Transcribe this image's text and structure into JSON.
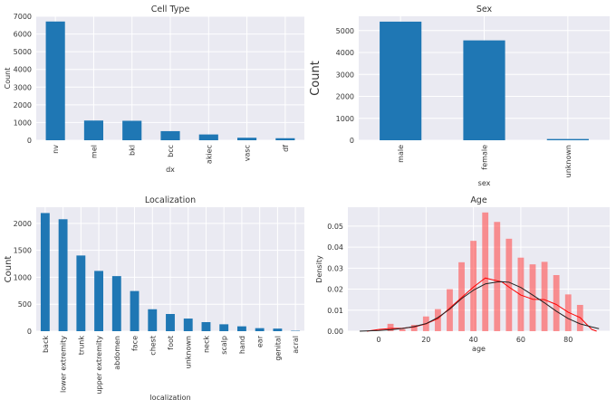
{
  "chart_data": [
    {
      "type": "bar",
      "title": "Cell Type",
      "xlabel": "dx",
      "ylabel": "Count",
      "ylim": [
        0,
        7000
      ],
      "yticks": [
        0,
        1000,
        2000,
        3000,
        4000,
        5000,
        6000,
        7000
      ],
      "categories": [
        "nv",
        "mel",
        "bkl",
        "bcc",
        "akiec",
        "vasc",
        "df"
      ],
      "values": [
        6705,
        1113,
        1099,
        514,
        327,
        142,
        115
      ],
      "color": "#1f77b4",
      "grid": true
    },
    {
      "type": "bar",
      "title": "Sex",
      "xlabel": "sex",
      "ylabel": "Count",
      "ylim": [
        0,
        5650
      ],
      "yticks": [
        0,
        1000,
        2000,
        3000,
        4000,
        5000
      ],
      "categories": [
        "male",
        "female",
        "unknown"
      ],
      "values": [
        5406,
        4552,
        57
      ],
      "color": "#1f77b4",
      "grid": true
    },
    {
      "type": "bar",
      "title": "Localization",
      "xlabel": "localization",
      "ylabel": "Count",
      "ylim": [
        0,
        2300
      ],
      "yticks": [
        0,
        500,
        1000,
        1500,
        2000
      ],
      "categories": [
        "back",
        "lower extremity",
        "trunk",
        "upper extremity",
        "abdomen",
        "face",
        "chest",
        "foot",
        "unknown",
        "neck",
        "scalp",
        "hand",
        "ear",
        "genital",
        "acral"
      ],
      "values": [
        2192,
        2077,
        1404,
        1118,
        1022,
        745,
        407,
        319,
        234,
        168,
        128,
        90,
        56,
        48,
        7
      ],
      "color": "#1f77b4",
      "grid": true
    },
    {
      "type": "histogram",
      "title": "Age",
      "xlabel": "age",
      "ylabel": "Density",
      "xlim": [
        -13,
        97.5
      ],
      "ylim": [
        0,
        0.059
      ],
      "xticks": [
        0,
        20,
        40,
        60,
        80
      ],
      "yticks": [
        "0.00",
        "0.01",
        "0.02",
        "0.03",
        "0.04",
        "0.05"
      ],
      "grid": true,
      "bins": {
        "x": [
          5,
          10,
          15,
          20,
          25,
          30,
          35,
          40,
          45,
          50,
          55,
          60,
          65,
          70,
          75,
          80,
          85
        ],
        "values": [
          0.0035,
          0.001,
          0.003,
          0.007,
          0.0105,
          0.02,
          0.0328,
          0.043,
          0.0565,
          0.052,
          0.044,
          0.035,
          0.0318,
          0.033,
          0.0267,
          0.0175,
          0.0125
        ],
        "color": "#ff4d4d"
      },
      "series": [
        {
          "color": "#ff0000",
          "x": [
            -5,
            0,
            5,
            10,
            15,
            20,
            25,
            30,
            35,
            40,
            45,
            48,
            52,
            55,
            60,
            65,
            70,
            75,
            80,
            85,
            88,
            90,
            92
          ],
          "y": [
            0.0,
            0.0008,
            0.0013,
            0.0014,
            0.002,
            0.0035,
            0.006,
            0.011,
            0.016,
            0.021,
            0.0253,
            0.0245,
            0.0235,
            0.021,
            0.0172,
            0.0152,
            0.015,
            0.0127,
            0.009,
            0.0065,
            0.003,
            0.0008,
            0.0
          ]
        },
        {
          "color": "#222222",
          "x": [
            -8,
            0,
            5,
            10,
            15,
            20,
            25,
            30,
            35,
            40,
            45,
            50,
            52,
            55,
            60,
            65,
            70,
            75,
            80,
            85,
            90,
            93
          ],
          "y": [
            0.0,
            0.0003,
            0.0007,
            0.0013,
            0.0022,
            0.0036,
            0.0065,
            0.0105,
            0.0155,
            0.0195,
            0.0225,
            0.0234,
            0.0235,
            0.0233,
            0.0208,
            0.0172,
            0.0135,
            0.0095,
            0.006,
            0.0035,
            0.002,
            0.0012
          ]
        }
      ]
    }
  ]
}
